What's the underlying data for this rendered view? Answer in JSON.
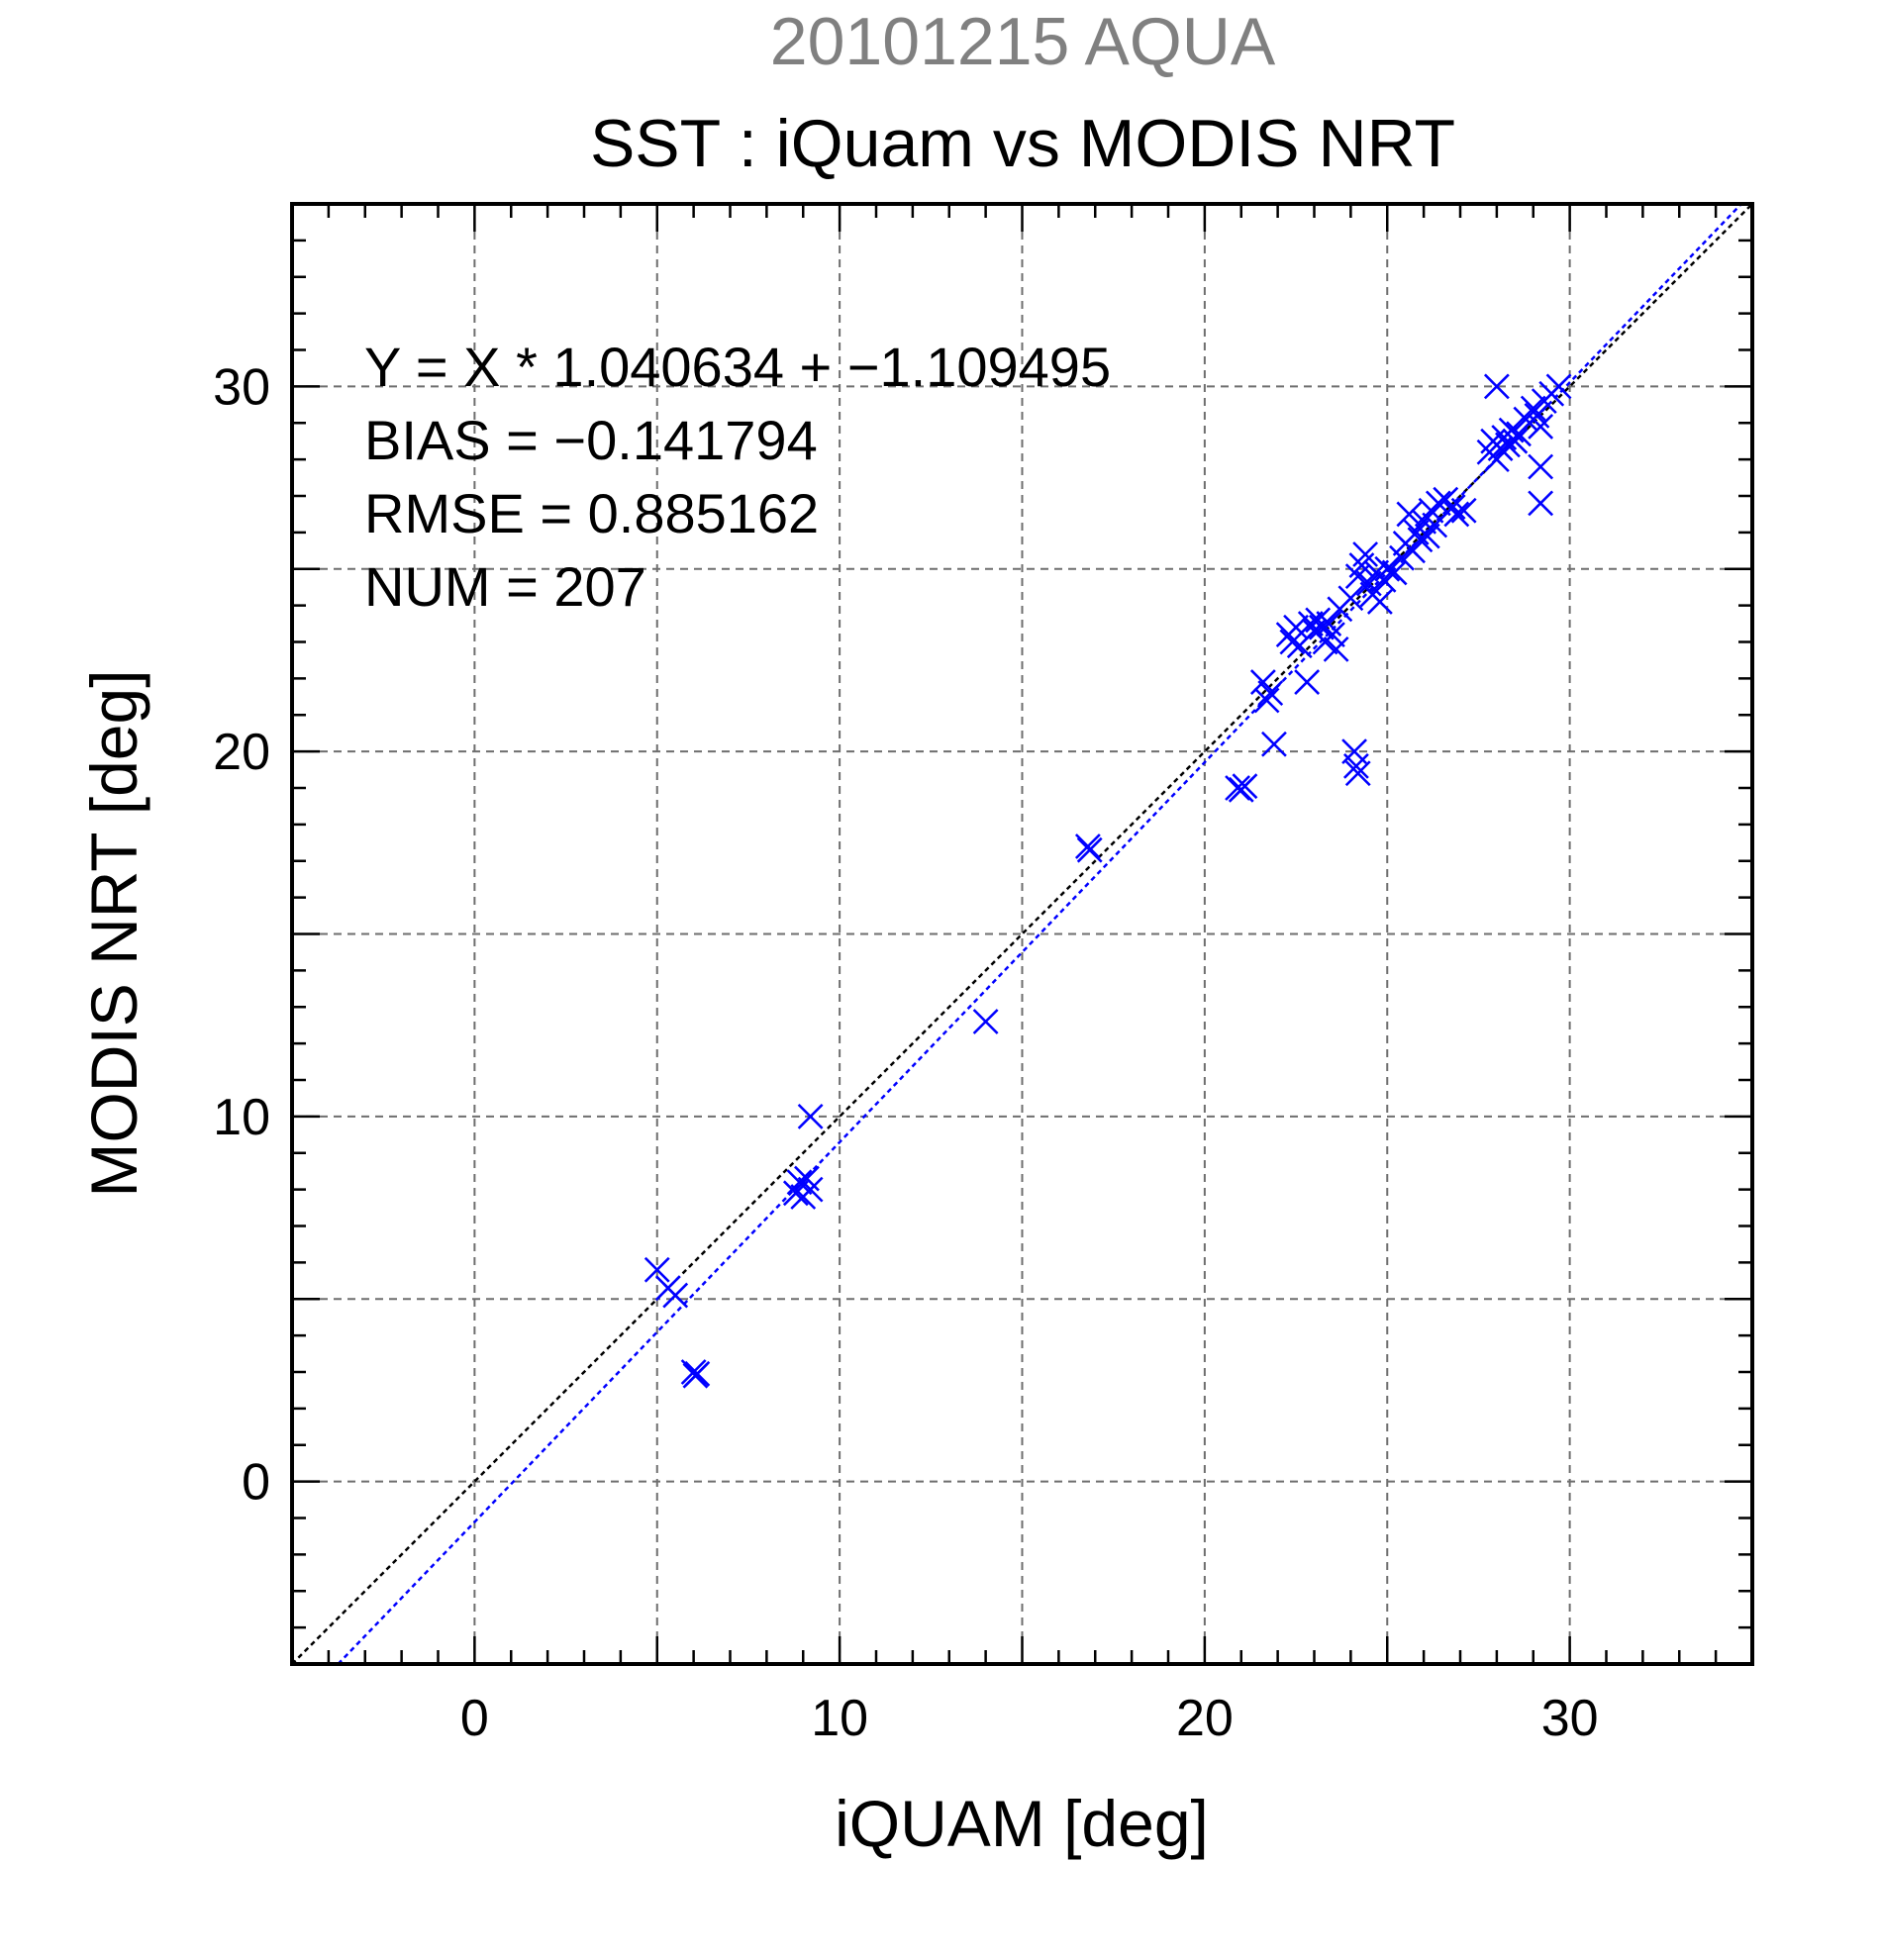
{
  "chart_data": {
    "type": "scatter",
    "supertitle": "20101215 AQUA",
    "title": "SST : iQuam vs MODIS NRT",
    "xlabel": "iQUAM [deg]",
    "ylabel": "MODIS NRT [deg]",
    "xlim": [
      -5,
      35
    ],
    "ylim": [
      -5,
      35
    ],
    "xticks": [
      0,
      10,
      20,
      30
    ],
    "yticks": [
      0,
      10,
      20,
      30
    ],
    "minor_tick_step": 1,
    "grid": true,
    "grid_step": 5,
    "colors": {
      "points": "#0000ff",
      "fit_line": "#0000ff",
      "identity_line": "#000000",
      "grid": "#6e6e6e",
      "supertitle": "#808080"
    },
    "stats": {
      "regression": "Y = X * 1.040634 + −1.109495",
      "bias": "BIAS = −0.141794",
      "rmse": "RMSE = 0.885162",
      "num": "NUM = 207"
    },
    "fit": {
      "slope": 1.040634,
      "intercept": -1.109495
    },
    "identity": {
      "slope": 1,
      "intercept": 0
    },
    "marker": "x",
    "points": [
      [
        5.0,
        5.8
      ],
      [
        5.3,
        5.3
      ],
      [
        5.5,
        5.1
      ],
      [
        6.0,
        3.0
      ],
      [
        6.05,
        2.9
      ],
      [
        6.1,
        2.95
      ],
      [
        8.8,
        7.9
      ],
      [
        8.9,
        8.2
      ],
      [
        9.0,
        7.8
      ],
      [
        9.1,
        8.3
      ],
      [
        9.2,
        8.0
      ],
      [
        9.2,
        10.0
      ],
      [
        14.0,
        12.6
      ],
      [
        16.8,
        17.4
      ],
      [
        16.85,
        17.3
      ],
      [
        20.9,
        19.0
      ],
      [
        21.0,
        18.95
      ],
      [
        21.1,
        19.05
      ],
      [
        21.6,
        21.9
      ],
      [
        21.7,
        21.4
      ],
      [
        21.8,
        21.6
      ],
      [
        21.9,
        20.2
      ],
      [
        22.3,
        23.2
      ],
      [
        22.4,
        23.0
      ],
      [
        22.5,
        23.4
      ],
      [
        22.6,
        22.9
      ],
      [
        22.8,
        21.9
      ],
      [
        22.9,
        23.5
      ],
      [
        23.0,
        23.3
      ],
      [
        23.1,
        23.6
      ],
      [
        23.2,
        23.4
      ],
      [
        23.3,
        23.0
      ],
      [
        23.4,
        23.5
      ],
      [
        23.5,
        23.2
      ],
      [
        23.6,
        22.8
      ],
      [
        23.7,
        23.9
      ],
      [
        24.0,
        24.2
      ],
      [
        24.1,
        20.0
      ],
      [
        24.15,
        19.6
      ],
      [
        24.2,
        19.4
      ],
      [
        24.2,
        24.8
      ],
      [
        24.3,
        25.1
      ],
      [
        24.4,
        25.4
      ],
      [
        24.5,
        24.6
      ],
      [
        24.6,
        24.3
      ],
      [
        24.7,
        24.9
      ],
      [
        24.8,
        24.1
      ],
      [
        24.9,
        24.7
      ],
      [
        25.0,
        25.0
      ],
      [
        25.2,
        24.9
      ],
      [
        25.4,
        25.3
      ],
      [
        25.5,
        25.7
      ],
      [
        25.6,
        26.5
      ],
      [
        25.7,
        25.5
      ],
      [
        25.8,
        26.0
      ],
      [
        25.9,
        25.8
      ],
      [
        26.0,
        26.3
      ],
      [
        26.1,
        25.9
      ],
      [
        26.2,
        26.6
      ],
      [
        26.3,
        26.2
      ],
      [
        26.4,
        26.8
      ],
      [
        26.6,
        26.9
      ],
      [
        26.8,
        26.7
      ],
      [
        26.9,
        26.5
      ],
      [
        27.1,
        26.6
      ],
      [
        27.8,
        28.2
      ],
      [
        27.9,
        28.5
      ],
      [
        28.0,
        28.0
      ],
      [
        28.0,
        30.0
      ],
      [
        28.1,
        28.3
      ],
      [
        28.2,
        28.6
      ],
      [
        28.3,
        28.4
      ],
      [
        28.4,
        28.8
      ],
      [
        28.5,
        28.5
      ],
      [
        28.6,
        28.7
      ],
      [
        28.8,
        29.1
      ],
      [
        29.0,
        29.4
      ],
      [
        29.1,
        29.2
      ],
      [
        29.2,
        27.8
      ],
      [
        29.2,
        26.8
      ],
      [
        29.2,
        28.9
      ],
      [
        29.3,
        29.6
      ],
      [
        29.5,
        29.8
      ],
      [
        29.7,
        30.0
      ]
    ]
  }
}
